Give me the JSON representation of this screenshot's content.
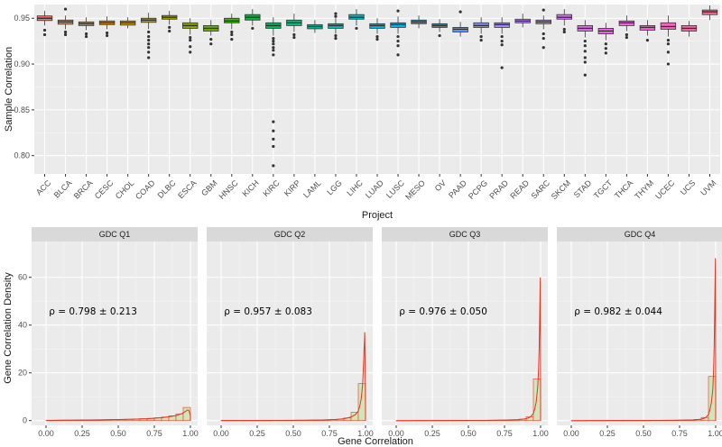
{
  "chart_data": [
    {
      "type": "box",
      "xlabel": "Project",
      "ylabel": "Sample Correlation",
      "ylim": [
        0.78,
        0.965
      ],
      "yticks": [
        0.8,
        0.85,
        0.9,
        0.95
      ],
      "ytick_labels": [
        "0.80",
        "0.85",
        "0.90",
        "0.95"
      ],
      "grid": true,
      "categories": [
        "ACC",
        "BLCA",
        "BRCA",
        "CESC",
        "CHOL",
        "COAD",
        "DLBC",
        "ESCA",
        "GBM",
        "HNSC",
        "KICH",
        "KIRC",
        "KIRP",
        "LAML",
        "LGG",
        "LIHC",
        "LUAD",
        "LUSC",
        "MESO",
        "OV",
        "PAAD",
        "PCPG",
        "PRAD",
        "READ",
        "SARC",
        "SKCM",
        "STAD",
        "TGCT",
        "THCA",
        "THYM",
        "UCEC",
        "UCS",
        "UVM"
      ],
      "colors": [
        "#F8766D",
        "#F07F4A",
        "#E58700",
        "#D8900A",
        "#C99800",
        "#B79F00",
        "#A3A500",
        "#8BAB00",
        "#6BB100",
        "#39B600",
        "#00BA38",
        "#00BD5C",
        "#00BF7D",
        "#00C19A",
        "#00C1B4",
        "#00BFC4",
        "#00B9E3",
        "#00B4F0",
        "#00ADFA",
        "#00A5FF",
        "#619CFF",
        "#8B93FF",
        "#A58AFF",
        "#B983FF",
        "#C77CFF",
        "#DB72FB",
        "#E76BF3",
        "#F066EA",
        "#F564E3",
        "#FA62DB",
        "#FF61C3",
        "#FF62AC",
        "#FF6C91"
      ],
      "boxes": [
        {
          "q1": 0.9475,
          "median": 0.95,
          "q3": 0.9525,
          "whislo": 0.942,
          "whishi": 0.958,
          "outliers": [
            0.937,
            0.932
          ]
        },
        {
          "q1": 0.9435,
          "median": 0.946,
          "q3": 0.948,
          "whislo": 0.938,
          "whishi": 0.953,
          "outliers": [
            0.935,
            0.932,
            0.96
          ]
        },
        {
          "q1": 0.942,
          "median": 0.944,
          "q3": 0.946,
          "whislo": 0.937,
          "whishi": 0.951,
          "outliers": [
            0.933,
            0.93
          ]
        },
        {
          "q1": 0.943,
          "median": 0.945,
          "q3": 0.947,
          "whislo": 0.938,
          "whishi": 0.952,
          "outliers": [
            0.934,
            0.931
          ]
        },
        {
          "q1": 0.9425,
          "median": 0.945,
          "q3": 0.947,
          "whislo": 0.939,
          "whishi": 0.951,
          "outliers": []
        },
        {
          "q1": 0.9455,
          "median": 0.948,
          "q3": 0.95,
          "whislo": 0.938,
          "whishi": 0.956,
          "outliers": [
            0.935,
            0.93,
            0.926,
            0.922,
            0.918,
            0.913,
            0.907
          ]
        },
        {
          "q1": 0.949,
          "median": 0.951,
          "q3": 0.953,
          "whislo": 0.943,
          "whishi": 0.958,
          "outliers": [
            0.94,
            0.936
          ]
        },
        {
          "q1": 0.939,
          "median": 0.942,
          "q3": 0.945,
          "whislo": 0.932,
          "whishi": 0.95,
          "outliers": [
            0.929,
            0.926,
            0.919,
            0.913
          ]
        },
        {
          "q1": 0.936,
          "median": 0.939,
          "q3": 0.942,
          "whislo": 0.931,
          "whishi": 0.948,
          "outliers": [
            0.927,
            0.922
          ]
        },
        {
          "q1": 0.945,
          "median": 0.947,
          "q3": 0.95,
          "whislo": 0.938,
          "whishi": 0.955,
          "outliers": [
            0.935,
            0.932,
            0.927
          ]
        },
        {
          "q1": 0.948,
          "median": 0.951,
          "q3": 0.954,
          "whislo": 0.942,
          "whishi": 0.96,
          "outliers": [
            0.939
          ]
        },
        {
          "q1": 0.939,
          "median": 0.942,
          "q3": 0.945,
          "whislo": 0.931,
          "whishi": 0.951,
          "outliers": [
            0.928,
            0.925,
            0.922,
            0.918,
            0.915,
            0.91,
            0.837,
            0.827,
            0.818,
            0.81,
            0.789
          ]
        },
        {
          "q1": 0.942,
          "median": 0.945,
          "q3": 0.948,
          "whislo": 0.935,
          "whishi": 0.955,
          "outliers": [
            0.932,
            0.929
          ]
        },
        {
          "q1": 0.9385,
          "median": 0.941,
          "q3": 0.943,
          "whislo": 0.934,
          "whishi": 0.948,
          "outliers": []
        },
        {
          "q1": 0.939,
          "median": 0.942,
          "q3": 0.944,
          "whislo": 0.933,
          "whishi": 0.95,
          "outliers": [
            0.931,
            0.928,
            0.955,
            0.952
          ]
        },
        {
          "q1": 0.949,
          "median": 0.951,
          "q3": 0.954,
          "whislo": 0.942,
          "whishi": 0.96,
          "outliers": [
            0.939
          ]
        },
        {
          "q1": 0.939,
          "median": 0.942,
          "q3": 0.944,
          "whislo": 0.933,
          "whishi": 0.95,
          "outliers": [
            0.93,
            0.927
          ]
        },
        {
          "q1": 0.94,
          "median": 0.943,
          "q3": 0.945,
          "whislo": 0.933,
          "whishi": 0.952,
          "outliers": [
            0.93,
            0.925,
            0.92,
            0.91,
            0.958
          ]
        },
        {
          "q1": 0.944,
          "median": 0.946,
          "q3": 0.948,
          "whislo": 0.939,
          "whishi": 0.953,
          "outliers": []
        },
        {
          "q1": 0.94,
          "median": 0.942,
          "q3": 0.944,
          "whislo": 0.935,
          "whishi": 0.949,
          "outliers": [
            0.931
          ]
        },
        {
          "q1": 0.935,
          "median": 0.938,
          "q3": 0.94,
          "whislo": 0.93,
          "whishi": 0.946,
          "outliers": [
            0.957
          ]
        },
        {
          "q1": 0.94,
          "median": 0.942,
          "q3": 0.945,
          "whislo": 0.933,
          "whishi": 0.951,
          "outliers": [
            0.93,
            0.926
          ]
        },
        {
          "q1": 0.94,
          "median": 0.943,
          "q3": 0.945,
          "whislo": 0.933,
          "whishi": 0.951,
          "outliers": [
            0.93,
            0.925,
            0.921,
            0.896
          ]
        },
        {
          "q1": 0.945,
          "median": 0.947,
          "q3": 0.949,
          "whislo": 0.94,
          "whishi": 0.955,
          "outliers": []
        },
        {
          "q1": 0.944,
          "median": 0.946,
          "q3": 0.948,
          "whislo": 0.938,
          "whishi": 0.953,
          "outliers": [
            0.933,
            0.928,
            0.918,
            0.959
          ]
        },
        {
          "q1": 0.949,
          "median": 0.951,
          "q3": 0.954,
          "whislo": 0.942,
          "whishi": 0.96,
          "outliers": [
            0.938,
            0.935
          ]
        },
        {
          "q1": 0.936,
          "median": 0.939,
          "q3": 0.942,
          "whislo": 0.929,
          "whishi": 0.948,
          "outliers": [
            0.925,
            0.92,
            0.914,
            0.907,
            0.902,
            0.888
          ]
        },
        {
          "q1": 0.933,
          "median": 0.936,
          "q3": 0.939,
          "whislo": 0.926,
          "whishi": 0.945,
          "outliers": [
            0.922,
            0.917,
            0.912
          ]
        },
        {
          "q1": 0.942,
          "median": 0.945,
          "q3": 0.947,
          "whislo": 0.936,
          "whishi": 0.953,
          "outliers": [
            0.932,
            0.929
          ]
        },
        {
          "q1": 0.937,
          "median": 0.94,
          "q3": 0.942,
          "whislo": 0.931,
          "whishi": 0.948,
          "outliers": [
            0.926
          ]
        },
        {
          "q1": 0.938,
          "median": 0.941,
          "q3": 0.945,
          "whislo": 0.93,
          "whishi": 0.953,
          "outliers": [
            0.926,
            0.922,
            0.913,
            0.9
          ]
        },
        {
          "q1": 0.936,
          "median": 0.939,
          "q3": 0.942,
          "whislo": 0.93,
          "whishi": 0.947,
          "outliers": []
        },
        {
          "q1": 0.954,
          "median": 0.957,
          "q3": 0.959,
          "whislo": 0.948,
          "whishi": 0.964,
          "outliers": []
        }
      ]
    },
    {
      "type": "histogram",
      "xlabel": "Gene Correlation",
      "ylabel": "Gene Correlation Density",
      "xlim": [
        -0.1,
        1.05
      ],
      "ylim": [
        -2,
        75
      ],
      "xticks": [
        0,
        0.25,
        0.5,
        0.75,
        1.0
      ],
      "xtick_labels": [
        "0.00",
        "0.25",
        "0.50",
        "0.75",
        "1.00"
      ],
      "yticks": [
        0,
        20,
        40,
        60
      ],
      "ytick_labels": [
        "0",
        "20",
        "40",
        "60"
      ],
      "bin_edges": [
        0.0,
        0.05,
        0.1,
        0.15,
        0.2,
        0.25,
        0.3,
        0.35,
        0.4,
        0.45,
        0.5,
        0.55,
        0.6,
        0.65,
        0.7,
        0.75,
        0.8,
        0.85,
        0.9,
        0.95,
        1.0
      ],
      "bar_fill": "#cfe6b8",
      "bar_stroke": "#e8533f",
      "line_color": "#e8331f",
      "panels": [
        {
          "strip": "GDC Q1",
          "annotation": "ρ = 0.798 ± 0.213",
          "bars": [
            0.1,
            0.1,
            0.15,
            0.15,
            0.2,
            0.2,
            0.25,
            0.3,
            0.35,
            0.4,
            0.45,
            0.55,
            0.65,
            0.8,
            0.95,
            1.2,
            1.5,
            2.0,
            2.8,
            5.5
          ],
          "density_x": [
            0.0,
            0.1,
            0.2,
            0.3,
            0.4,
            0.5,
            0.6,
            0.7,
            0.8,
            0.85,
            0.9,
            0.93,
            0.95,
            0.97,
            0.98,
            0.99,
            1.0
          ],
          "density_y": [
            0.1,
            0.15,
            0.2,
            0.25,
            0.35,
            0.45,
            0.6,
            0.8,
            1.2,
            1.6,
            2.1,
            2.7,
            3.2,
            4.0,
            4.5,
            4.2,
            2.0
          ]
        },
        {
          "strip": "GDC Q2",
          "annotation": "ρ = 0.957 ± 0.083",
          "bars": [
            0.05,
            0.05,
            0.05,
            0.05,
            0.05,
            0.05,
            0.05,
            0.1,
            0.1,
            0.1,
            0.15,
            0.15,
            0.2,
            0.25,
            0.3,
            0.4,
            0.6,
            1.1,
            3.5,
            15.5
          ],
          "density_x": [
            0.0,
            0.2,
            0.4,
            0.6,
            0.7,
            0.8,
            0.85,
            0.9,
            0.93,
            0.95,
            0.96,
            0.97,
            0.98,
            0.985,
            0.99,
            0.995,
            1.0
          ],
          "density_y": [
            0.05,
            0.05,
            0.1,
            0.15,
            0.25,
            0.5,
            0.8,
            1.5,
            2.5,
            4.0,
            6.0,
            9.0,
            15.0,
            22.0,
            30.0,
            37.0,
            5.0
          ]
        },
        {
          "strip": "GDC Q3",
          "annotation": "ρ = 0.976 ± 0.050",
          "bars": [
            0.0,
            0.0,
            0.05,
            0.05,
            0.05,
            0.05,
            0.05,
            0.05,
            0.05,
            0.05,
            0.1,
            0.1,
            0.1,
            0.15,
            0.2,
            0.25,
            0.35,
            0.6,
            1.6,
            17.5
          ],
          "density_x": [
            0.0,
            0.3,
            0.6,
            0.75,
            0.85,
            0.9,
            0.93,
            0.95,
            0.96,
            0.97,
            0.98,
            0.985,
            0.99,
            0.993,
            0.996,
            0.998,
            1.0
          ],
          "density_y": [
            0.0,
            0.05,
            0.1,
            0.2,
            0.4,
            0.8,
            1.5,
            3.0,
            5.0,
            8.0,
            14.0,
            20.0,
            30.0,
            40.0,
            52.0,
            60.0,
            8.0
          ]
        },
        {
          "strip": "GDC Q4",
          "annotation": "ρ = 0.982 ± 0.044",
          "bars": [
            0.0,
            0.0,
            0.05,
            0.05,
            0.05,
            0.05,
            0.05,
            0.05,
            0.05,
            0.05,
            0.05,
            0.1,
            0.1,
            0.1,
            0.15,
            0.2,
            0.3,
            0.5,
            1.3,
            18.5
          ],
          "density_x": [
            0.0,
            0.3,
            0.6,
            0.75,
            0.85,
            0.9,
            0.93,
            0.95,
            0.96,
            0.97,
            0.98,
            0.985,
            0.99,
            0.993,
            0.996,
            0.998,
            1.0
          ],
          "density_y": [
            0.0,
            0.05,
            0.1,
            0.15,
            0.3,
            0.6,
            1.2,
            2.5,
            4.5,
            7.5,
            13.0,
            20.0,
            32.0,
            45.0,
            58.0,
            68.0,
            9.0
          ]
        }
      ]
    }
  ]
}
